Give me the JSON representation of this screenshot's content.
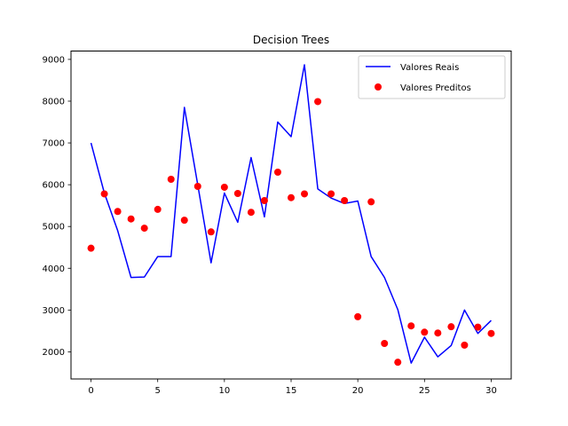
{
  "chart_data": {
    "type": "line+scatter",
    "title": "Decision Trees",
    "xlabel": "",
    "ylabel": "",
    "xlim": [
      -1.5,
      31.5
    ],
    "ylim": [
      1350,
      9200
    ],
    "x_ticks": [
      0,
      5,
      10,
      15,
      20,
      25,
      30
    ],
    "y_ticks": [
      2000,
      3000,
      4000,
      5000,
      6000,
      7000,
      8000,
      9000
    ],
    "grid": false,
    "legend_position": "top-right",
    "series": [
      {
        "name": "Valores Reais",
        "kind": "line",
        "color": "#0000ff",
        "x": [
          0,
          1,
          2,
          3,
          4,
          5,
          6,
          7,
          8,
          9,
          10,
          11,
          12,
          13,
          14,
          15,
          16,
          17,
          18,
          19,
          20,
          21,
          22,
          23,
          24,
          25,
          26,
          27,
          28,
          29,
          30
        ],
        "values": [
          7000,
          5800,
          4900,
          3780,
          3790,
          4280,
          4280,
          7850,
          6000,
          4130,
          5800,
          5100,
          6650,
          5230,
          7500,
          7150,
          8870,
          5900,
          5680,
          5550,
          5610,
          4280,
          3780,
          3010,
          1730,
          2350,
          1880,
          2150,
          3000,
          2440,
          2750
        ]
      },
      {
        "name": "Valores Preditos",
        "kind": "scatter",
        "color": "#ff0000",
        "x": [
          0,
          1,
          2,
          3,
          4,
          5,
          6,
          7,
          8,
          9,
          10,
          11,
          12,
          13,
          14,
          15,
          16,
          17,
          18,
          19,
          20,
          21,
          22,
          23,
          24,
          25,
          26,
          27,
          28,
          29,
          30
        ],
        "values": [
          4480,
          5780,
          5360,
          5180,
          4960,
          5410,
          6130,
          5150,
          5960,
          4870,
          5940,
          5790,
          5340,
          5620,
          6300,
          5690,
          5780,
          7990,
          5780,
          5620,
          2840,
          5590,
          2200,
          1750,
          2620,
          2470,
          2450,
          2600,
          2160,
          2590,
          2440
        ]
      }
    ]
  }
}
